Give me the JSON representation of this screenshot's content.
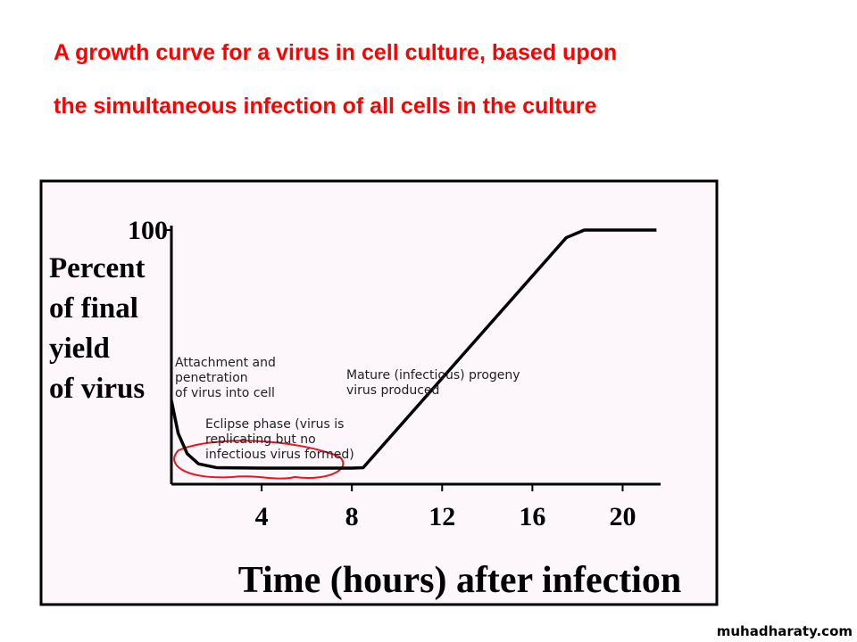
{
  "slide": {
    "title_lines": [
      "A growth curve for a virus in cell culture, based upon",
      "the simultaneous infection of all cells in the culture"
    ],
    "watermark": "muhadharaty.com"
  },
  "chart_data": {
    "type": "line",
    "y_label_lines": [
      "Percent",
      "of final",
      "yield",
      "of virus"
    ],
    "x_label": "Time (hours) after infection",
    "x": [
      0,
      0.3,
      0.7,
      1.2,
      2,
      4,
      8,
      8.5,
      17.5,
      18.3,
      21.5
    ],
    "series": [
      {
        "color": "#000000",
        "values": [
          33,
          20,
          12,
          8,
          6.5,
          6.3,
          6.3,
          6.5,
          97,
          100,
          100
        ]
      }
    ],
    "xlim": [
      0,
      22
    ],
    "xticks": [
      4,
      8,
      12,
      16,
      20
    ],
    "ylim": [
      0,
      100
    ],
    "yticks": [
      100
    ],
    "annotations": [
      {
        "lines": [
          "Attachment and",
          "penetration",
          "of virus into cell"
        ]
      },
      {
        "lines": [
          "Eclipse phase (virus is",
          "replicating but no",
          "infectious virus formed)"
        ]
      },
      {
        "lines": [
          "Mature (infectious) progeny",
          "virus produced"
        ]
      }
    ]
  }
}
